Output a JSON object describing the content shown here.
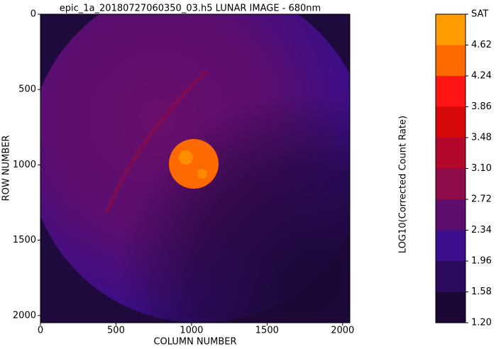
{
  "chart_data": {
    "type": "image",
    "title": "epic_1a_20180727060350_03.h5 LUNAR IMAGE - 680nm",
    "x_label": "COLUMN NUMBER",
    "y_label": "ROW NUMBER",
    "xlim": [
      0,
      2048
    ],
    "ylim": [
      2048,
      0
    ],
    "xticks": [
      0,
      500,
      1000,
      1500,
      2000
    ],
    "yticks": [
      0,
      500,
      1000,
      1500,
      2000
    ],
    "colorbar": {
      "label": "LOG10(Corrected Count Rate)",
      "lim": [
        1.2,
        5.0
      ],
      "ticks": [
        {
          "value": 1.2,
          "label": "1.20"
        },
        1.58,
        1.96,
        2.34,
        2.72,
        {
          "value": 3.1,
          "label": "3.10"
        },
        3.48,
        3.86,
        4.24,
        4.62,
        {
          "value": 5.0,
          "label": "SAT"
        }
      ],
      "colors": [
        "#1c0836",
        "#2b0b5e",
        "#3a0e8c",
        "#5c0d6e",
        "#8e0c48",
        "#b3082c",
        "#d60808",
        "#ff1414",
        "#ff6a00",
        "#ff9c00",
        "#ffd400"
      ]
    }
  }
}
